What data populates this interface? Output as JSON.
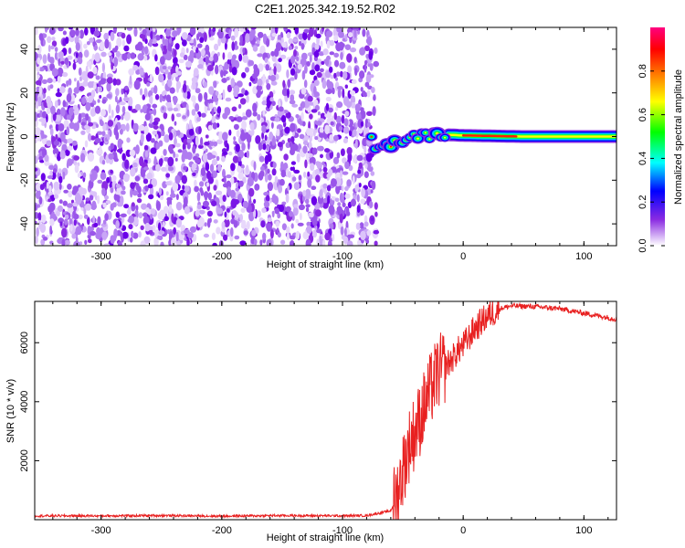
{
  "title": "C2E1.2025.342.19.52.R02",
  "colors": {
    "snr_line": "#e82020",
    "noise_purple": "#8a2be2",
    "axis": "#000000"
  },
  "chart_data": [
    {
      "type": "heatmap",
      "name": "spectrogram",
      "xlabel": "Height of straight line (km)",
      "ylabel": "Frequency (Hz)",
      "xlim": [
        -355,
        127
      ],
      "ylim": [
        -50,
        50
      ],
      "x_ticks": [
        -300,
        -200,
        -100,
        0,
        100
      ],
      "y_ticks": [
        -40,
        -20,
        0,
        20,
        40
      ],
      "noise_region_x": [
        -355,
        -72
      ],
      "signal_trace": [
        {
          "x": -75,
          "y": -8
        },
        {
          "x": -65,
          "y": -5
        },
        {
          "x": -55,
          "y": -3
        },
        {
          "x": -45,
          "y": -1
        },
        {
          "x": -35,
          "y": 0
        },
        {
          "x": -20,
          "y": 1
        },
        {
          "x": 0,
          "y": 0.5
        },
        {
          "x": 50,
          "y": 0
        },
        {
          "x": 127,
          "y": 0
        }
      ],
      "colorbar": {
        "label": "Normalized spectral amplitude",
        "range": [
          0.0,
          1.0
        ],
        "ticks": [
          "0.0",
          "0.2",
          "0.4",
          "0.6",
          "0.8"
        ],
        "tick_values": [
          0.0,
          0.2,
          0.4,
          0.6,
          0.8
        ],
        "colormap": [
          "#ffffff",
          "#8a2be2",
          "#0000ff",
          "#00ffff",
          "#00ff00",
          "#ffff00",
          "#ff8000",
          "#ff0000",
          "#ff00a0"
        ]
      }
    },
    {
      "type": "line",
      "name": "snr",
      "xlabel": "Height of straight line (km)",
      "ylabel": "SNR (10 * v/v)",
      "xlim": [
        -355,
        127
      ],
      "ylim": [
        0,
        7400
      ],
      "x_ticks": [
        -300,
        -200,
        -100,
        0,
        100
      ],
      "y_ticks": [
        2000,
        4000,
        6000
      ],
      "series": [
        {
          "x": [
            -355,
            -300,
            -250,
            -200,
            -150,
            -100,
            -80,
            -60,
            -55,
            -50,
            -45,
            -40,
            -35,
            -30,
            -25,
            -22,
            -20,
            -15,
            -10,
            -5,
            0,
            5,
            10,
            20,
            30,
            40,
            60,
            80,
            100,
            127
          ],
          "y": [
            130,
            130,
            140,
            120,
            140,
            130,
            140,
            300,
            800,
            1700,
            2500,
            3000,
            3500,
            4100,
            4600,
            4900,
            5000,
            5200,
            5400,
            5700,
            5900,
            6200,
            6500,
            6900,
            7150,
            7250,
            7220,
            7150,
            7000,
            6800
          ]
        }
      ]
    }
  ]
}
